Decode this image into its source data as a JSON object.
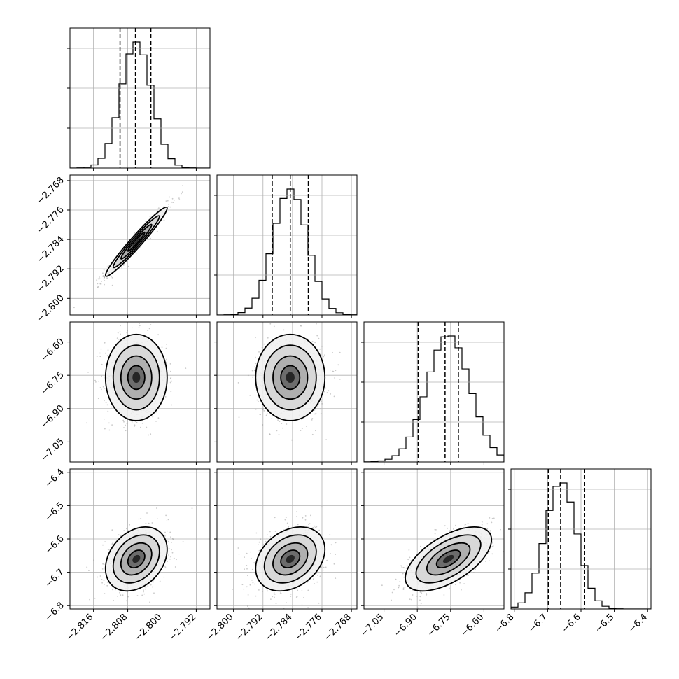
{
  "chart_data": {
    "type": "corner",
    "title": "",
    "grid": true,
    "params": [
      {
        "index": 0,
        "mean": -2.806,
        "sd": 0.0036,
        "range": [
          -2.8215,
          -2.7888
        ],
        "ticks": [
          -2.816,
          -2.808,
          -2.8,
          -2.792
        ],
        "tick_labels": [
          "−2.816",
          "−2.808",
          "−2.800",
          "−2.792"
        ],
        "quantiles": [
          -2.8098,
          -2.8062,
          -2.8026
        ]
      },
      {
        "index": 1,
        "mean": -2.7846,
        "sd": 0.0047,
        "range": [
          -2.8045,
          -2.7665
        ],
        "ticks": [
          -2.8,
          -2.792,
          -2.784,
          -2.776,
          -2.768
        ],
        "tick_labels": [
          "−2.800",
          "−2.792",
          "−2.784",
          "−2.776",
          "−2.768"
        ],
        "quantiles": [
          -2.7895,
          -2.7846,
          -2.7797
        ]
      },
      {
        "index": 2,
        "mean": -6.76,
        "sd": 0.097,
        "range": [
          -7.14,
          -6.51
        ],
        "ticks": [
          -7.05,
          -6.9,
          -6.75,
          -6.6
        ],
        "tick_labels": [
          "−7.05",
          "−6.90",
          "−6.75",
          "−6.60"
        ],
        "quantiles": [
          -6.896,
          -6.775,
          -6.715
        ]
      },
      {
        "index": 3,
        "mean": -6.66,
        "sd": 0.048,
        "range": [
          -6.81,
          -6.39
        ],
        "ticks": [
          -6.8,
          -6.7,
          -6.6,
          -6.5,
          -6.4
        ],
        "tick_labels": [
          "−6.8",
          "−6.7",
          "−6.6",
          "−6.5",
          "−6.4"
        ],
        "quantiles": [
          -6.698,
          -6.661,
          -6.589
        ]
      }
    ],
    "pairs": [
      {
        "row": 1,
        "col": 0,
        "correlation": 0.97,
        "mode": [
          -2.806,
          -2.7846
        ]
      },
      {
        "row": 2,
        "col": 0,
        "correlation": 0.0,
        "mode": [
          -2.806,
          -6.76
        ]
      },
      {
        "row": 2,
        "col": 1,
        "correlation": 0.0,
        "mode": [
          -2.7846,
          -6.76
        ]
      },
      {
        "row": 3,
        "col": 0,
        "correlation": 0.3,
        "mode": [
          -2.806,
          -6.66
        ]
      },
      {
        "row": 3,
        "col": 1,
        "correlation": 0.3,
        "mode": [
          -2.7846,
          -6.66
        ]
      },
      {
        "row": 3,
        "col": 2,
        "correlation": 0.6,
        "mode": [
          -6.76,
          -6.66
        ]
      }
    ]
  }
}
